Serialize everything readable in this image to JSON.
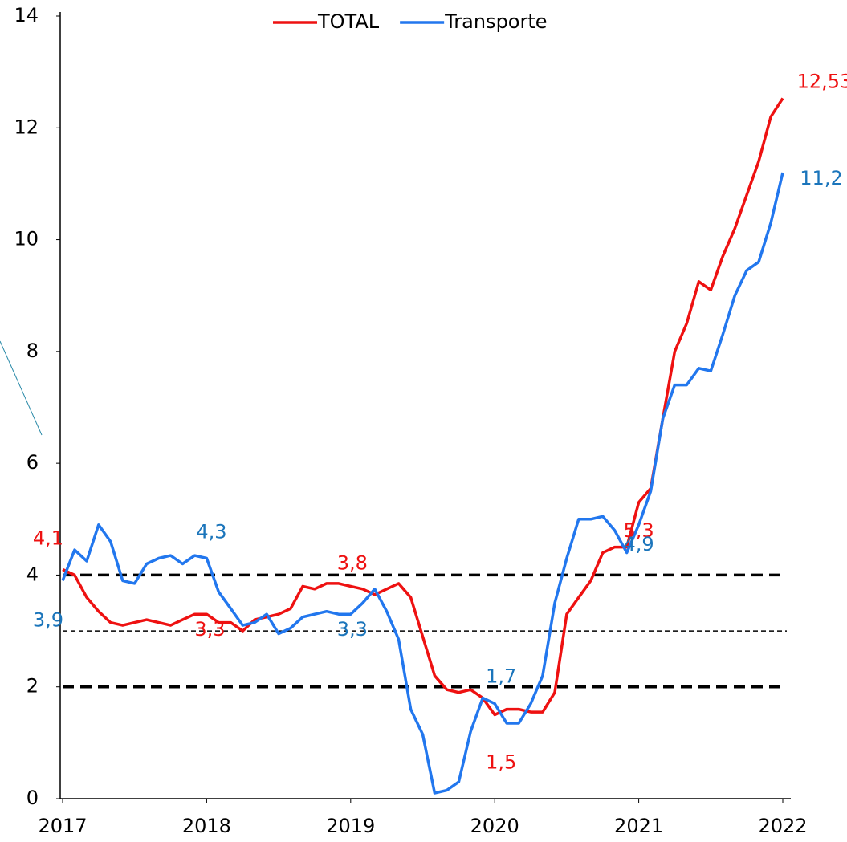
{
  "chart_data": {
    "type": "line",
    "x": [
      2017,
      2017.083,
      2017.167,
      2017.25,
      2017.333,
      2017.417,
      2017.5,
      2017.583,
      2017.667,
      2017.75,
      2017.833,
      2017.917,
      2018,
      2018.083,
      2018.167,
      2018.25,
      2018.333,
      2018.417,
      2018.5,
      2018.583,
      2018.667,
      2018.75,
      2018.833,
      2018.917,
      2019,
      2019.083,
      2019.167,
      2019.25,
      2019.333,
      2019.417,
      2019.5,
      2019.583,
      2019.667,
      2019.75,
      2019.833,
      2019.917,
      2020,
      2020.083,
      2020.167,
      2020.25,
      2020.333,
      2020.417,
      2020.5,
      2020.583,
      2020.667,
      2020.75,
      2020.833,
      2020.917,
      2021,
      2021.083,
      2021.167,
      2021.25,
      2021.333,
      2021.417,
      2021.5,
      2021.583,
      2021.667,
      2021.75,
      2021.833,
      2021.917,
      2022
    ],
    "series": [
      {
        "name": "TOTAL",
        "color": "#ee1111",
        "label_color": "#ee1111",
        "values": [
          4.1,
          4.0,
          3.6,
          3.35,
          3.15,
          3.1,
          3.15,
          3.2,
          3.15,
          3.1,
          3.2,
          3.3,
          3.3,
          3.15,
          3.15,
          3.0,
          3.2,
          3.25,
          3.3,
          3.4,
          3.8,
          3.75,
          3.85,
          3.85,
          3.8,
          3.75,
          3.65,
          3.75,
          3.85,
          3.6,
          2.9,
          2.2,
          1.95,
          1.9,
          1.95,
          1.8,
          1.5,
          1.6,
          1.6,
          1.55,
          1.55,
          1.9,
          3.3,
          3.6,
          3.9,
          4.4,
          4.5,
          4.5,
          5.3,
          5.55,
          6.8,
          8.0,
          8.5,
          9.25,
          9.1,
          9.7,
          10.2,
          10.8,
          11.4,
          12.2,
          12.53
        ],
        "value_labels": [
          "4,1",
          null,
          null,
          null,
          null,
          null,
          null,
          null,
          null,
          null,
          null,
          null,
          "3,3",
          null,
          null,
          null,
          null,
          null,
          null,
          null,
          null,
          null,
          null,
          null,
          "3,8",
          null,
          null,
          null,
          null,
          null,
          null,
          null,
          null,
          null,
          null,
          null,
          "1,5",
          null,
          null,
          null,
          null,
          null,
          null,
          null,
          null,
          null,
          null,
          null,
          "5,3",
          null,
          null,
          null,
          null,
          null,
          null,
          null,
          null,
          null,
          null,
          null,
          "12,53"
        ]
      },
      {
        "name": "Transporte",
        "color": "#2277ee",
        "label_color": "#1b75bb",
        "values": [
          3.9,
          4.45,
          4.25,
          4.9,
          4.6,
          3.9,
          3.85,
          4.2,
          4.3,
          4.35,
          4.2,
          4.35,
          4.3,
          3.7,
          3.4,
          3.1,
          3.15,
          3.3,
          2.95,
          3.05,
          3.25,
          3.3,
          3.35,
          3.3,
          3.3,
          3.5,
          3.75,
          3.35,
          2.85,
          1.6,
          1.15,
          0.1,
          0.15,
          0.3,
          1.2,
          1.8,
          1.7,
          1.35,
          1.35,
          1.7,
          2.2,
          3.5,
          4.3,
          5.0,
          5.0,
          5.05,
          4.8,
          4.4,
          4.9,
          5.5,
          6.8,
          7.4,
          7.4,
          7.7,
          7.65,
          8.3,
          9.0,
          9.45,
          9.6,
          10.3,
          11.2
        ],
        "value_labels": [
          "3,9",
          null,
          null,
          null,
          null,
          null,
          null,
          null,
          null,
          null,
          null,
          null,
          "4,3",
          null,
          null,
          null,
          null,
          null,
          null,
          null,
          null,
          null,
          null,
          null,
          "3,3",
          null,
          null,
          null,
          null,
          null,
          null,
          null,
          null,
          null,
          null,
          null,
          "1,7",
          null,
          null,
          null,
          null,
          null,
          null,
          null,
          null,
          null,
          null,
          null,
          "4,9",
          null,
          null,
          null,
          null,
          null,
          null,
          null,
          null,
          null,
          null,
          null,
          "11,2"
        ]
      }
    ],
    "xlim": [
      2017,
      2022
    ],
    "xticks": [
      2017,
      2018,
      2019,
      2020,
      2021,
      2022
    ],
    "ylim": [
      0,
      14
    ],
    "yticks": [
      0,
      2,
      4,
      6,
      8,
      10,
      12,
      14
    ],
    "reference_lines": [
      {
        "value": 4,
        "style": "thick"
      },
      {
        "value": 3,
        "style": "thin"
      },
      {
        "value": 2,
        "style": "thick"
      }
    ],
    "legend": "top"
  }
}
